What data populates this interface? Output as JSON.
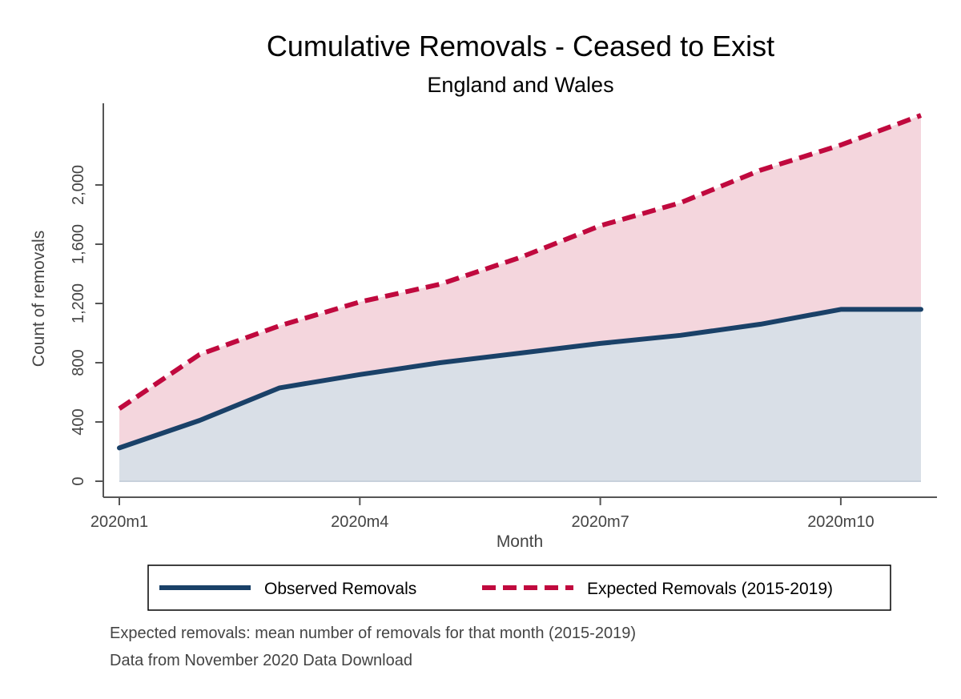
{
  "chart_data": {
    "type": "area",
    "title": "Cumulative Removals - Ceased to Exist",
    "subtitle": "England and Wales",
    "xlabel": "Month",
    "ylabel": "Count of removals",
    "x": [
      1,
      2,
      3,
      4,
      5,
      6,
      7,
      8,
      9,
      10,
      11
    ],
    "xlim": [
      1,
      11
    ],
    "ylim": [
      0,
      2500
    ],
    "x_ticks": [
      {
        "x": 1,
        "label": "2020m1"
      },
      {
        "x": 4,
        "label": "2020m4"
      },
      {
        "x": 7,
        "label": "2020m7"
      },
      {
        "x": 10,
        "label": "2020m10"
      }
    ],
    "y_ticks": [
      {
        "value": 0,
        "label": "0"
      },
      {
        "value": 400,
        "label": "400"
      },
      {
        "value": 800,
        "label": "800"
      },
      {
        "value": 1200,
        "label": "1,200"
      },
      {
        "value": 1600,
        "label": "1,600"
      },
      {
        "value": 2000,
        "label": "2,000"
      }
    ],
    "grid": false,
    "legend_position": "bottom",
    "series": [
      {
        "name": "Observed Removals",
        "values": [
          225,
          410,
          630,
          720,
          800,
          865,
          930,
          985,
          1060,
          1160,
          1160
        ],
        "line_color": "#1a4168",
        "fill_color": "#d9dfe7",
        "dash": false
      },
      {
        "name": "Expected Removals (2015-2019)",
        "values": [
          490,
          855,
          1050,
          1210,
          1330,
          1510,
          1725,
          1880,
          2100,
          2270,
          2470
        ],
        "line_color": "#c0093e",
        "fill_color": "#f4d6dd",
        "dash": true
      }
    ]
  },
  "notes": [
    "Expected removals: mean number of removals for that month (2015-2019)",
    "Data from  November 2020 Data Download"
  ]
}
